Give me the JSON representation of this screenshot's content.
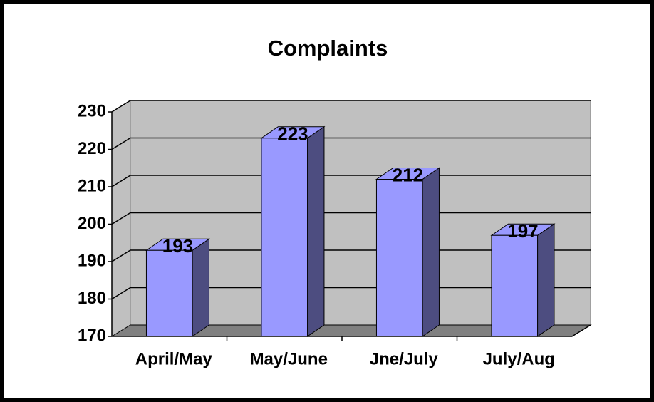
{
  "chart_data": {
    "type": "bar3d",
    "title": "Complaints",
    "categories": [
      "April/May",
      "May/June",
      "Jne/July",
      "July/Aug"
    ],
    "values": [
      193,
      223,
      212,
      197
    ],
    "color": "#9999ff",
    "side_color": "#4d4d80",
    "ylim": [
      170,
      230
    ],
    "yticks": [
      170,
      180,
      190,
      200,
      210,
      220,
      230
    ],
    "grid": true
  }
}
